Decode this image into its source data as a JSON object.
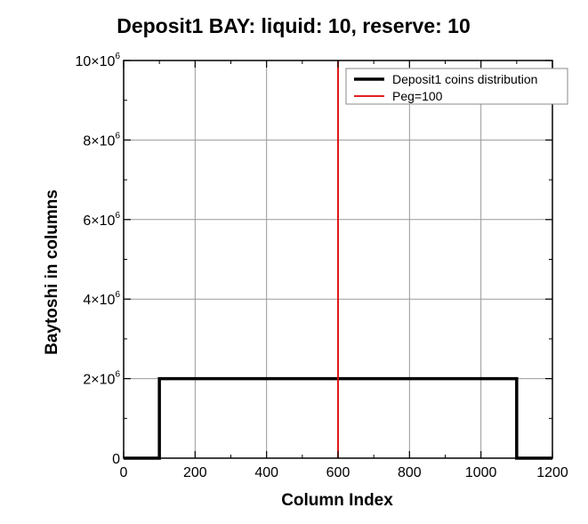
{
  "chart_data": {
    "type": "line",
    "title": "Deposit1 BAY: liquid: 10, reserve: 10",
    "xlabel": "Column Index",
    "ylabel": "Baytoshi in columns",
    "xlim": [
      0,
      1200
    ],
    "ylim": [
      0,
      10000000
    ],
    "x_ticks": [
      {
        "value": 0,
        "label": "0"
      },
      {
        "value": 200,
        "label": "200"
      },
      {
        "value": 400,
        "label": "400"
      },
      {
        "value": 600,
        "label": "600"
      },
      {
        "value": 800,
        "label": "800"
      },
      {
        "value": 1000,
        "label": "1000"
      },
      {
        "value": 1200,
        "label": "1200"
      }
    ],
    "y_ticks": [
      {
        "value": 0,
        "mantissa": "0",
        "exponent": ""
      },
      {
        "value": 2000000,
        "mantissa": "2×10",
        "exponent": "6"
      },
      {
        "value": 4000000,
        "mantissa": "4×10",
        "exponent": "6"
      },
      {
        "value": 6000000,
        "mantissa": "6×10",
        "exponent": "6"
      },
      {
        "value": 8000000,
        "mantissa": "8×10",
        "exponent": "6"
      },
      {
        "value": 10000000,
        "mantissa": "10×10",
        "exponent": "6"
      }
    ],
    "grid": true,
    "legend_position": "top-right",
    "series": [
      {
        "name": "Deposit1 coins distribution",
        "color": "#000000",
        "kind": "step",
        "points": [
          {
            "x": 0,
            "y": 0
          },
          {
            "x": 100,
            "y": 0
          },
          {
            "x": 100,
            "y": 2000000
          },
          {
            "x": 1100,
            "y": 2000000
          },
          {
            "x": 1100,
            "y": 0
          },
          {
            "x": 1200,
            "y": 0
          }
        ]
      },
      {
        "name": "Peg=100",
        "color": "#dd0000",
        "kind": "vline",
        "x": 600
      }
    ]
  }
}
